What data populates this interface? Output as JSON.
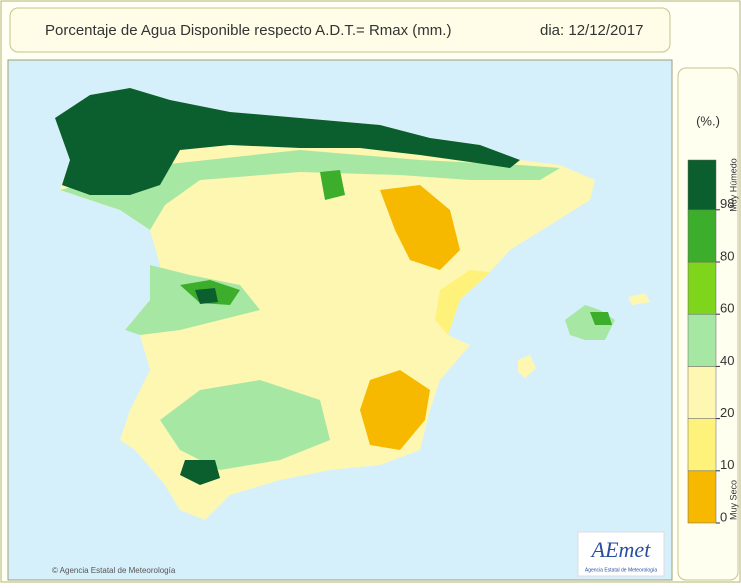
{
  "header": {
    "title": "Porcentaje de Agua Disponible respecto A.D.T.= Rmax (mm.)",
    "date": "dia: 12/12/2017"
  },
  "legend": {
    "unit": "(%.)",
    "ticks": [
      0,
      10,
      20,
      40,
      60,
      80,
      98
    ],
    "colors": [
      "#f7b900",
      "#fff27a",
      "#fdf7b2",
      "#a6e7a3",
      "#7fd41c",
      "#3cae2b",
      "#0b5e2e"
    ],
    "top_label": "Muy Húmedo",
    "bottom_label": "Muy Seco"
  },
  "footer": {
    "copyright": "© Agencia Estatal de Meteorología"
  },
  "logo": {
    "name": "AEmet",
    "subtitle": "Agencia Estatal de Meteorología"
  }
}
